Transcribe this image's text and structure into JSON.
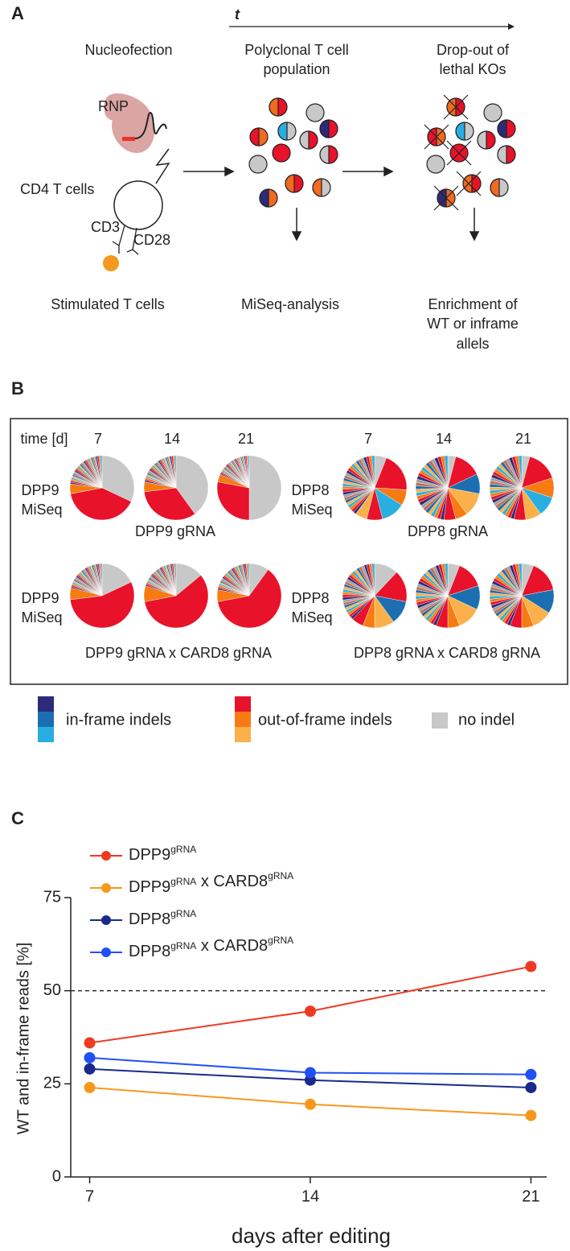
{
  "panel_a": {
    "letter": "A",
    "time_label": "t",
    "col1_title": "Nucleofection",
    "col2_title": [
      "Polyclonal T cell",
      "population"
    ],
    "col3_title": [
      "Drop-out of",
      "lethal KOs"
    ],
    "rnp": "RNP",
    "cd4": "CD4  T cells",
    "cd3": "CD3",
    "cd28": "CD28",
    "col1_caption": "Stimulated  T cells",
    "col2_caption": "MiSeq-analysis",
    "col3_caption": [
      "Enrichment of",
      "WT or inframe",
      "allels"
    ]
  },
  "panel_b": {
    "letter": "B",
    "time_header": "time  [d]",
    "days_left": [
      "7",
      "14",
      "21"
    ],
    "days_right": [
      "7",
      "14",
      "21"
    ],
    "rows": [
      {
        "left_label": [
          "DPP9",
          "MiSeq"
        ],
        "left_caption": "DPP9 gRNA",
        "right_label": [
          "DPP8",
          "MiSeq"
        ],
        "right_caption": "DPP8 gRNA"
      },
      {
        "left_label": [
          "DPP9",
          "MiSeq"
        ],
        "left_caption": "DPP9 gRNA x CARD8 gRNA",
        "right_label": [
          "DPP8",
          "MiSeq"
        ],
        "right_caption": "DPP8 gRNA x CARD8 gRNA"
      }
    ],
    "legend": [
      {
        "label": "in-frame indels",
        "colors": [
          "#2e2a7a",
          "#1b6fb0",
          "#29aee2"
        ]
      },
      {
        "label": "out-of-frame indels",
        "colors": [
          "#e8122a",
          "#f77b12",
          "#fbb04a"
        ]
      },
      {
        "label": "no indel",
        "colors": [
          "#c8c8c8"
        ]
      }
    ]
  },
  "chart_data": {
    "type": "line",
    "letter": "C",
    "x_label": "days after editing",
    "y_label": "WT and in-frame reads [%]",
    "x": [
      7,
      14,
      21
    ],
    "xlim": [
      6.4,
      21.5
    ],
    "xticks": [
      7,
      14,
      21
    ],
    "ylim": [
      0,
      75
    ],
    "yticks": [
      0,
      25,
      50,
      75
    ],
    "reference_line": 50,
    "superscript": "gRNA",
    "series": [
      {
        "name": "DPP9gRNA",
        "color": "#ee3a22",
        "values": [
          36,
          44.5,
          56.5
        ]
      },
      {
        "name": "DPP9gRNA x CARD8gRNA",
        "color": "#f7981d",
        "values": [
          24,
          19.5,
          16.5
        ]
      },
      {
        "name": "DPP8gRNA",
        "color": "#1a2a8c",
        "values": [
          29,
          26,
          24
        ]
      },
      {
        "name": "DPP8gRNA x CARD8gRNA",
        "color": "#2050f5",
        "values": [
          32,
          28,
          27.5
        ]
      }
    ]
  }
}
